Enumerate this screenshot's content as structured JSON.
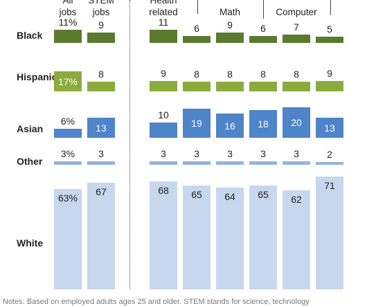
{
  "chart_data": {
    "type": "bar",
    "columns": [
      "All\njobs",
      "STEM\njobs",
      "Health\nrelated",
      "",
      "Math",
      "",
      "Computer",
      ""
    ],
    "groups": [
      {
        "label": "Black",
        "color": "#5a7a2e",
        "labelColor": "#ffffff",
        "values": [
          11,
          9,
          11,
          6,
          9,
          6,
          7,
          5
        ],
        "labels": [
          "11%",
          "9",
          "11",
          "6",
          "9",
          "6",
          "7",
          "5"
        ]
      },
      {
        "label": "Hispanic",
        "color": "#8bac3c",
        "labelColor": "#ffffff",
        "values": [
          17,
          8,
          9,
          8,
          8,
          8,
          8,
          9
        ],
        "labels": [
          "17%",
          "8",
          "9",
          "8",
          "8",
          "8",
          "8",
          "9"
        ]
      },
      {
        "label": "Asian",
        "color": "#4e84c8",
        "labelColor": "#ffffff",
        "values": [
          6,
          13,
          10,
          19,
          16,
          18,
          20,
          13
        ],
        "labels": [
          "6%",
          "13",
          "10",
          "19",
          "16",
          "18",
          "20",
          "13"
        ]
      },
      {
        "label": "Other",
        "color": "#92b4e0",
        "labelColor": "#222222",
        "values": [
          3,
          3,
          3,
          3,
          3,
          3,
          3,
          2
        ],
        "labels": [
          "3%",
          "3",
          "3",
          "3",
          "3",
          "3",
          "3",
          "2"
        ]
      },
      {
        "label": "White",
        "color": "#c6d7ee",
        "labelColor": "#222222",
        "values": [
          63,
          67,
          68,
          65,
          64,
          65,
          62,
          71
        ],
        "labels": [
          "63%",
          "67",
          "68",
          "65",
          "64",
          "65",
          "62",
          "71"
        ]
      }
    ]
  },
  "notes": "Notes: Based on employed adults ages 25 and older. STEM stands for science, technology"
}
